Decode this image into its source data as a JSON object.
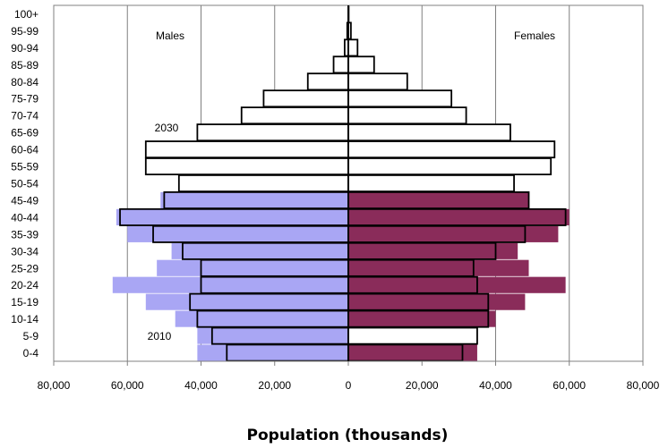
{
  "chart_data": {
    "type": "bar",
    "orientation": "horizontal",
    "layout": "population-pyramid",
    "xlabel": "Population (thousands)",
    "x_ticks": [
      "80,000",
      "60,000",
      "40,000",
      "20,000",
      "0",
      "20,000",
      "40,000",
      "60,000",
      "80,000"
    ],
    "xlim": [
      -80000,
      80000
    ],
    "grid": "vertical",
    "side_labels": {
      "left": "Males",
      "right": "Females"
    },
    "annotations": [
      "2030",
      "2010"
    ],
    "categories": [
      "0-4",
      "5-9",
      "10-14",
      "15-19",
      "20-24",
      "25-29",
      "30-34",
      "35-39",
      "40-44",
      "45-49",
      "50-54",
      "55-59",
      "60-64",
      "65-69",
      "70-74",
      "75-79",
      "80-84",
      "85-89",
      "90-94",
      "95-99",
      "100+"
    ],
    "series": [
      {
        "year": "2010",
        "style": "filled",
        "males": [
          41000,
          41000,
          47000,
          55000,
          64000,
          52000,
          48000,
          60000,
          63000,
          51000,
          41000,
          40000,
          29000,
          20000,
          16000,
          11000,
          6000,
          2000,
          500,
          100,
          0
        ],
        "females": [
          35000,
          34000,
          40000,
          48000,
          59000,
          49000,
          46000,
          57000,
          60000,
          49000,
          40000,
          39000,
          27000,
          20000,
          16000,
          12000,
          7000,
          3000,
          1000,
          200,
          0
        ]
      },
      {
        "year": "2030",
        "style": "outline",
        "males": [
          33000,
          37000,
          41000,
          43000,
          40000,
          40000,
          45000,
          53000,
          62000,
          50000,
          46000,
          55000,
          55000,
          41000,
          29000,
          23000,
          11000,
          4000,
          1000,
          300,
          0
        ],
        "females": [
          31000,
          35000,
          38000,
          38000,
          35000,
          34000,
          40000,
          48000,
          59000,
          49000,
          45000,
          55000,
          56000,
          44000,
          32000,
          28000,
          16000,
          7000,
          2500,
          700,
          100
        ]
      }
    ],
    "colors": {
      "male_2010": "#a9a6f4",
      "female_2010": "#8a2c5a",
      "outline_2030": "#000000",
      "outline_fill_2030": "#ffffff",
      "grid": "#808080",
      "axis": "#000000"
    }
  }
}
